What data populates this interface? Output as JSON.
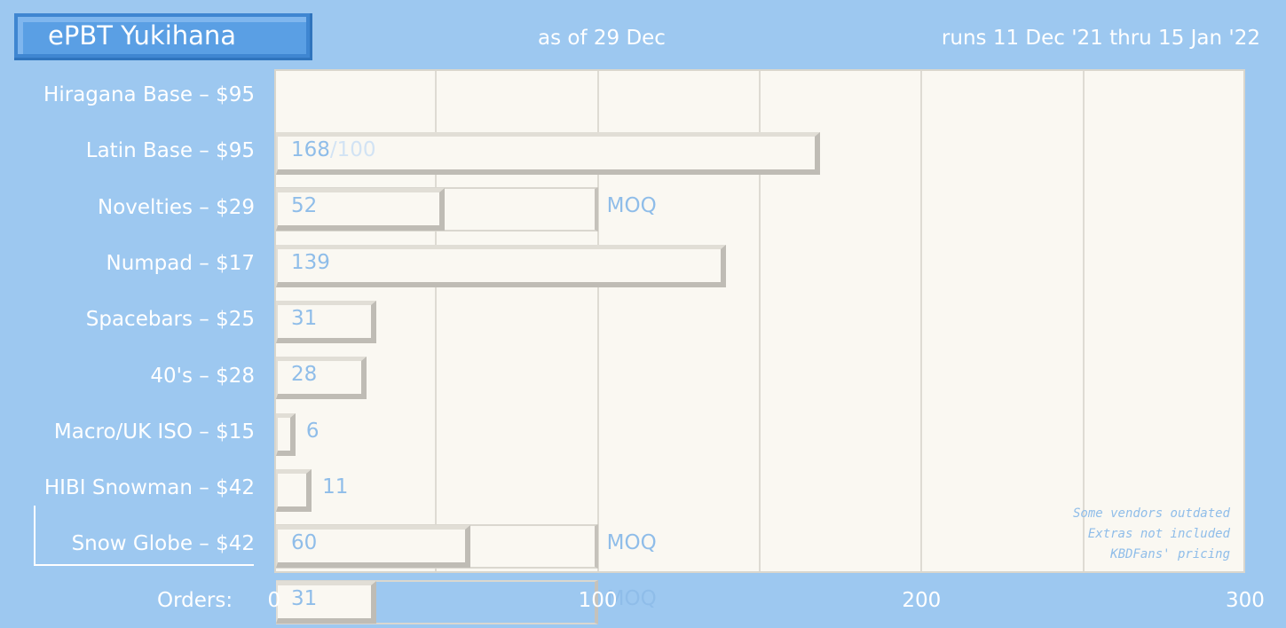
{
  "title": "ePBT Yukihana",
  "as_of": "as of 29 Dec",
  "runs": "runs 11 Dec '21 thru 15 Jan '22",
  "notes": [
    "Some vendors outdated",
    "Extras not included",
    "KBDFans' pricing"
  ],
  "colors": {
    "background": "#9dc8f0",
    "title_box": "#5a9fe4",
    "plot_bg": "#faf8f2",
    "value_text": "#8fbde9"
  },
  "chart_data": {
    "type": "bar",
    "orientation": "horizontal",
    "xlabel": "Orders:",
    "xlim": [
      0,
      300
    ],
    "xticks": [
      0,
      100,
      200,
      300
    ],
    "grid": true,
    "moq_label": "MOQ",
    "categories": [
      "Hiragana Base – $95",
      "Latin Base – $95",
      "Novelties – $29",
      "Numpad – $17",
      "Spacebars – $25",
      "40's – $28",
      "Macro/UK ISO – $15",
      "HIBI Snowman – $42",
      "Snow Globe – $42"
    ],
    "values": [
      168,
      52,
      139,
      31,
      28,
      6,
      11,
      60,
      31
    ],
    "moq": [
      100,
      100,
      null,
      null,
      null,
      null,
      null,
      100,
      100
    ],
    "moq_shown": [
      false,
      true,
      false,
      false,
      false,
      false,
      false,
      true,
      true
    ],
    "target_label": [
      "/100",
      "",
      "",
      "",
      "",
      "",
      "",
      "",
      ""
    ]
  }
}
